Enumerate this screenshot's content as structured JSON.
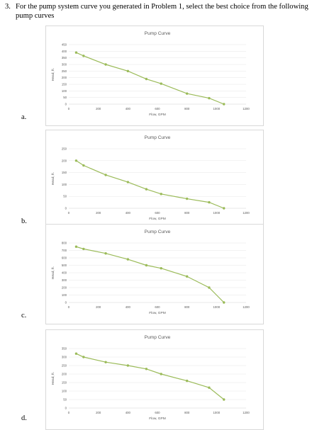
{
  "question": {
    "number": "3.",
    "text": "For the pump system curve you generated in Problem 1, select the best choice from the following pump curves"
  },
  "options": [
    {
      "label": "a."
    },
    {
      "label": "b."
    },
    {
      "label": "c."
    },
    {
      "label": "d."
    }
  ],
  "colors": {
    "line": "#9bbb59",
    "grid": "#e6e6e6",
    "text": "#595959"
  },
  "chart_data": [
    {
      "type": "line",
      "title": "Pump Curve",
      "xlabel": "Flow, GPM",
      "ylabel": "Head, ft.",
      "xlim": [
        0,
        1200
      ],
      "ylim": [
        0,
        450
      ],
      "xticks": [
        "0",
        "200",
        "400",
        "600",
        "800",
        "1000",
        "1200"
      ],
      "yticks": [
        "0",
        "50",
        "100",
        "150",
        "200",
        "250",
        "300",
        "350",
        "400",
        "450"
      ],
      "grid": "horizontal",
      "x": [
        50,
        100,
        250,
        400,
        525,
        625,
        800,
        950,
        1050
      ],
      "y": [
        390,
        365,
        300,
        250,
        190,
        155,
        80,
        45,
        0
      ]
    },
    {
      "type": "line",
      "title": "Pump Curve",
      "xlabel": "Flow, GPM",
      "ylabel": "Head, ft.",
      "xlim": [
        0,
        1200
      ],
      "ylim": [
        0,
        250
      ],
      "xticks": [
        "0",
        "200",
        "400",
        "600",
        "800",
        "1000",
        "1200"
      ],
      "yticks": [
        "0",
        "50",
        "100",
        "150",
        "200",
        "250"
      ],
      "grid": "horizontal",
      "x": [
        50,
        100,
        250,
        400,
        525,
        625,
        800,
        950,
        1050
      ],
      "y": [
        200,
        180,
        140,
        110,
        80,
        60,
        40,
        25,
        0
      ]
    },
    {
      "type": "line",
      "title": "Pump Curve",
      "xlabel": "Flow, GPM",
      "ylabel": "Head, ft.",
      "xlim": [
        0,
        1200
      ],
      "ylim": [
        0,
        800
      ],
      "xticks": [
        "0",
        "200",
        "400",
        "600",
        "800",
        "1000",
        "1200"
      ],
      "yticks": [
        "0",
        "100",
        "200",
        "300",
        "400",
        "500",
        "600",
        "700",
        "800"
      ],
      "grid": "horizontal",
      "x": [
        50,
        100,
        250,
        400,
        525,
        625,
        800,
        950,
        1050
      ],
      "y": [
        750,
        720,
        660,
        580,
        500,
        460,
        350,
        200,
        0
      ]
    },
    {
      "type": "line",
      "title": "Pump Curve",
      "xlabel": "Flow, GPM",
      "ylabel": "Head, ft.",
      "xlim": [
        0,
        1200
      ],
      "ylim": [
        0,
        350
      ],
      "xticks": [
        "0",
        "200",
        "400",
        "600",
        "800",
        "1000",
        "1200"
      ],
      "yticks": [
        "0",
        "50",
        "100",
        "150",
        "200",
        "250",
        "300",
        "350"
      ],
      "grid": "horizontal",
      "x": [
        50,
        100,
        250,
        400,
        525,
        625,
        800,
        950,
        1050
      ],
      "y": [
        320,
        300,
        270,
        250,
        230,
        200,
        160,
        120,
        50
      ]
    }
  ]
}
